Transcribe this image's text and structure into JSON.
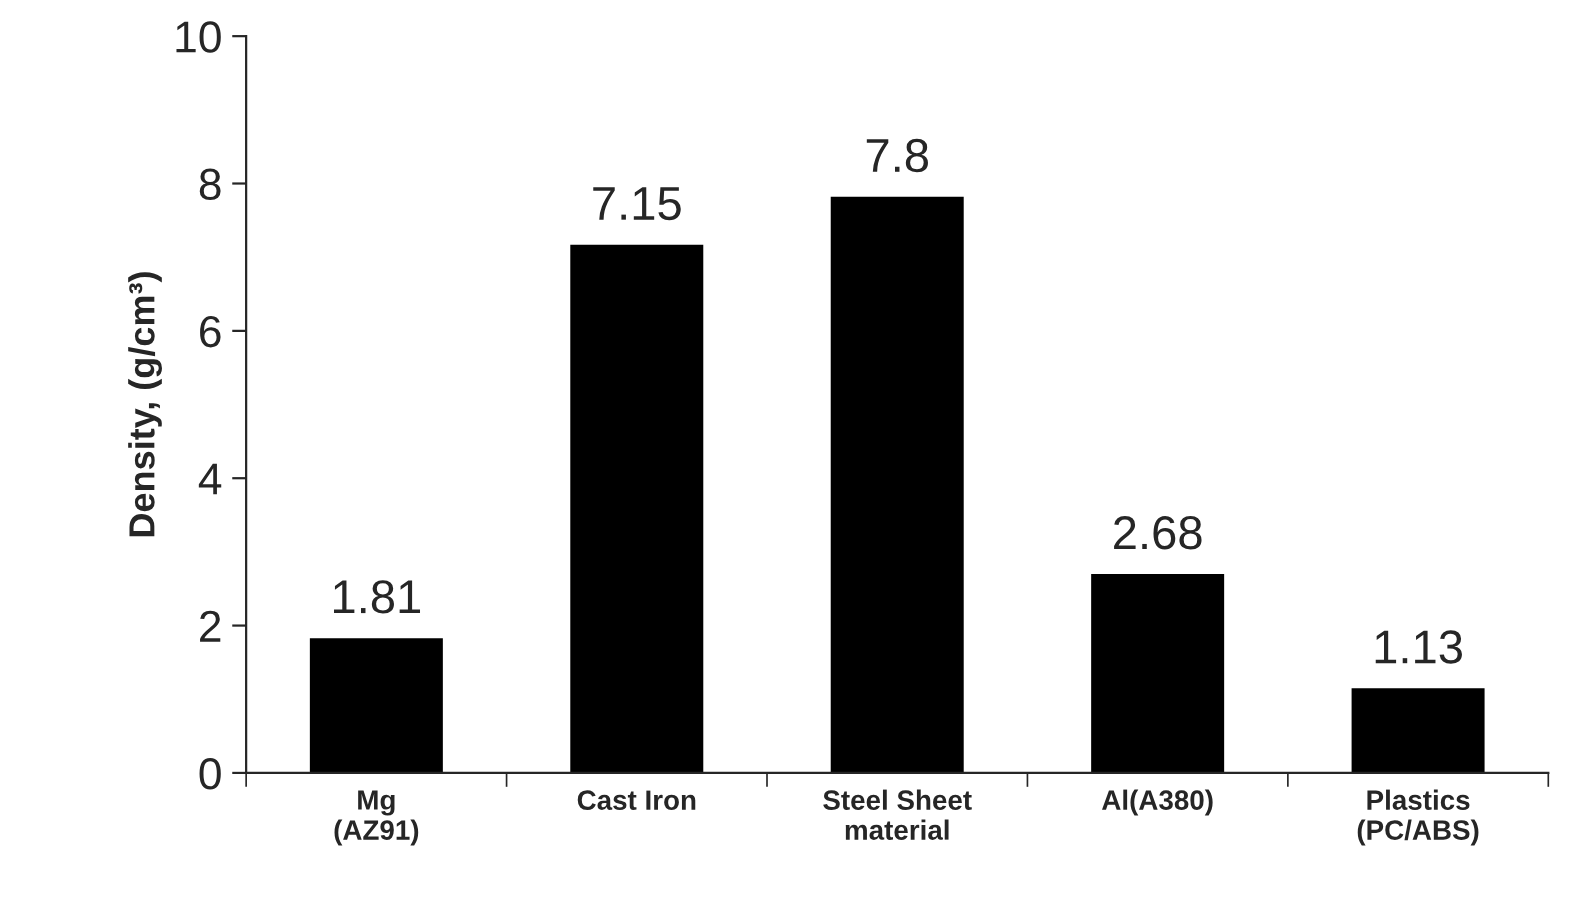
{
  "chart_data": {
    "type": "bar",
    "categories": [
      "Mg\n(AZ91)",
      "Cast Iron",
      "Steel Sheet\nmaterial",
      "Al(A380)",
      "Plastics\n(PC/ABS)"
    ],
    "values": [
      1.81,
      7.15,
      7.8,
      2.68,
      1.13
    ],
    "color": "#000000",
    "ylabel": "Density, (g/cm³)",
    "ylim": [
      0,
      10
    ],
    "yticks": [
      0,
      2,
      4,
      6,
      8,
      10
    ],
    "data_labels": true,
    "grid": false,
    "legend": false
  }
}
